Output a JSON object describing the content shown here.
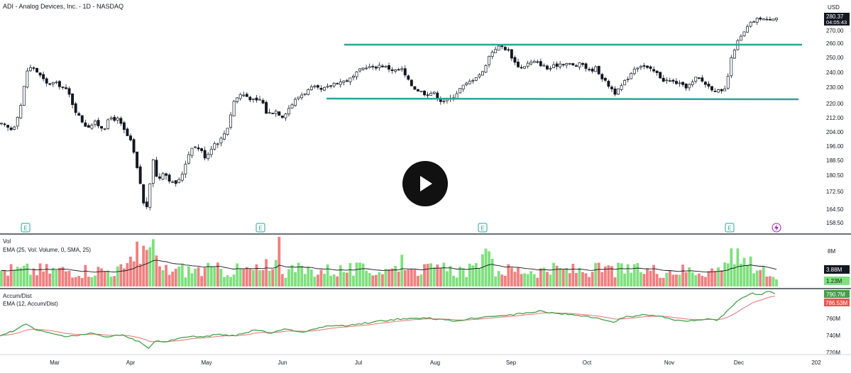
{
  "header": {
    "title": "ADI - Analog Devices, Inc. - 1D - NASDAQ",
    "currency": "USD",
    "last_price": "280.37",
    "countdown": "04:05:43"
  },
  "price_axis": {
    "ticks": [
      "270.00",
      "260.00",
      "250.00",
      "240.00",
      "230.00",
      "220.00",
      "212.00",
      "204.00",
      "196.00",
      "188.50",
      "180.50",
      "172.50",
      "164.50",
      "158.50"
    ]
  },
  "volume_pane": {
    "title": "Vol",
    "subtitle": "EMA (25, Vol: Volume, 0, SMA, 25)",
    "axis_tick": "8M",
    "ema_value": "3.88M",
    "volume_value": "1.23M"
  },
  "accum_pane": {
    "title": "Accum/Dist",
    "subtitle": "EMA (12, Accum/Dist)",
    "ticks": [
      "760M",
      "740M",
      "720M"
    ],
    "ad_value": "790.7M",
    "ema_value": "786.53M"
  },
  "time_axis": {
    "labels": [
      "Mar",
      "Apr",
      "May",
      "Jun",
      "Jul",
      "Aug",
      "Sep",
      "Oct",
      "Nov",
      "Dec",
      "202"
    ]
  },
  "earnings_marker": "E",
  "colors": {
    "up": "#26a69a",
    "down": "#ef5350",
    "up_volume": "#7ee07e",
    "down_volume": "#f08080",
    "horizontal_lines": "#26a69a",
    "ad_line": "#43a047",
    "ad_ema": "#e57373",
    "volume_ema": "#131722"
  },
  "chart_data": {
    "type": "candlestick",
    "symbol": "ADI",
    "exchange": "NASDAQ",
    "interval": "1D",
    "y_range": [
      155,
      283
    ],
    "horizontal_lines": [
      259,
      223
    ],
    "earnings_months": [
      "Feb",
      "May",
      "Aug",
      "Nov"
    ],
    "monthly_closes": [
      {
        "month": "Feb",
        "close": 241
      },
      {
        "month": "Mar",
        "close": 212
      },
      {
        "month": "Apr",
        "close": 186
      },
      {
        "month": "May",
        "close": 225
      },
      {
        "month": "Jun",
        "close": 229
      },
      {
        "month": "Jul",
        "close": 232
      },
      {
        "month": "Aug",
        "close": 253
      },
      {
        "month": "Sep",
        "close": 247
      },
      {
        "month": "Oct",
        "close": 230
      },
      {
        "month": "Nov",
        "close": 262
      },
      {
        "month": "Dec",
        "close": 280.37
      }
    ],
    "last_volume": "1.23M",
    "volume_ema": "3.88M",
    "accum_dist": "790.7M",
    "accum_dist_ema": "786.53M"
  }
}
